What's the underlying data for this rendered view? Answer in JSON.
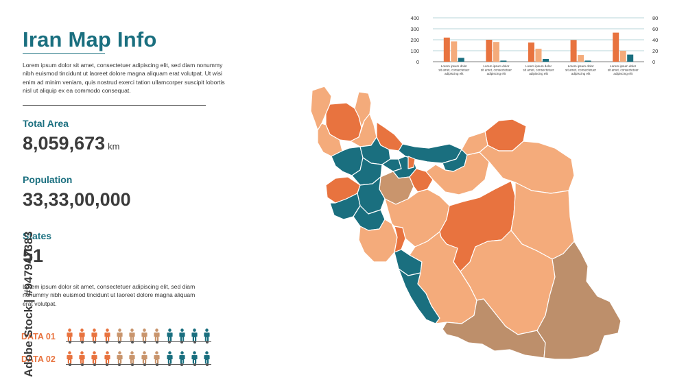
{
  "title": "Iran Map Info",
  "intro_text": "Lorem ipsum dolor sit amet, consectetuer adipiscing elit, sed diam nonummy nibh euismod tincidunt ut laoreet dolore magna aliquam erat volutpat. Ut wisi enim ad minim veniam, quis nostrud exerci tation ullamcorper suscipit lobortis nisl ut aliquip ex ea commodo consequat.",
  "stats": {
    "area_label": "Total Area",
    "area_value": "8,059,673",
    "area_unit": "km",
    "population_label": "Population",
    "population_value": "33,33,00,000",
    "states_label": "States",
    "states_value": "51"
  },
  "body_text": "Lorem ipsum dolor sit amet, consectetuer adipiscing elit, sed diam nonummy nibh euismod tincidunt ut laoreet dolore magna aliquam erat volutpat.",
  "data_rows": [
    {
      "label": "DATA 01",
      "figures": [
        "orange",
        "orange",
        "orange",
        "orange",
        "tan",
        "tan",
        "tan",
        "tan",
        "teal",
        "teal",
        "teal",
        "teal"
      ]
    },
    {
      "label": "DATA 02",
      "figures": [
        "orange",
        "orange",
        "orange",
        "orange",
        "tan",
        "tan",
        "tan",
        "tan",
        "teal",
        "teal",
        "teal",
        "teal"
      ]
    }
  ],
  "colors": {
    "teal": "#1a6f7f",
    "orange": "#e8733f",
    "peach": "#f4ab7b",
    "tan": "#c9956d",
    "brown": "#bd8f6b",
    "dark_text": "#3b3b3b"
  },
  "watermark": "Adobe Stock | #947947383",
  "chart_data": {
    "type": "bar",
    "categories": [
      "Lorem ipsum dolor sit amet, consectetuer adipiscing elit",
      "Lorem ipsum dolor sit amet, consectetuer adipiscing elit",
      "Lorem ipsum dolor sit amet, consectetuer adipiscing elit",
      "Lorem ipsum dolor sit amet, consectetuer adipiscing elit",
      "Lorem ipsum dolor sit amet, consectetuer adipiscing elit"
    ],
    "category_lines": [
      [
        "Lorem ipsum dolor",
        "sit amet, consectetuer",
        "adipiscing elit"
      ],
      [
        "Lorem ipsum dolor",
        "sit amet, consectetuer",
        "adipiscing elit"
      ],
      [
        "Lorem ipsum dolor",
        "sit amet, consectetuer",
        "adipiscing elit"
      ],
      [
        "Lorem ipsum dolor",
        "sit amet, consectetuer",
        "adipiscing elit"
      ],
      [
        "Lorem ipsum dolor",
        "sit amet, consectetuer",
        "adipiscing elit"
      ]
    ],
    "series": [
      {
        "values": [
          220,
          200,
          175,
          198,
          265
        ],
        "axis": "left",
        "color": "#e8733f"
      },
      {
        "values": [
          185,
          180,
          118,
          62,
          100
        ],
        "axis": "left",
        "color": "#f4ab7b"
      },
      {
        "values": [
          7,
          2,
          5,
          2,
          13
        ],
        "axis": "right",
        "color": "#1a6f7f"
      }
    ],
    "left_axis": {
      "min": 0,
      "max": 400,
      "ticks": [
        "0",
        "100",
        "200",
        "300",
        "400"
      ]
    },
    "right_axis": {
      "min": 0,
      "max": 80,
      "ticks": [
        "0",
        "20",
        "40",
        "60",
        "80"
      ]
    },
    "grid": true
  }
}
